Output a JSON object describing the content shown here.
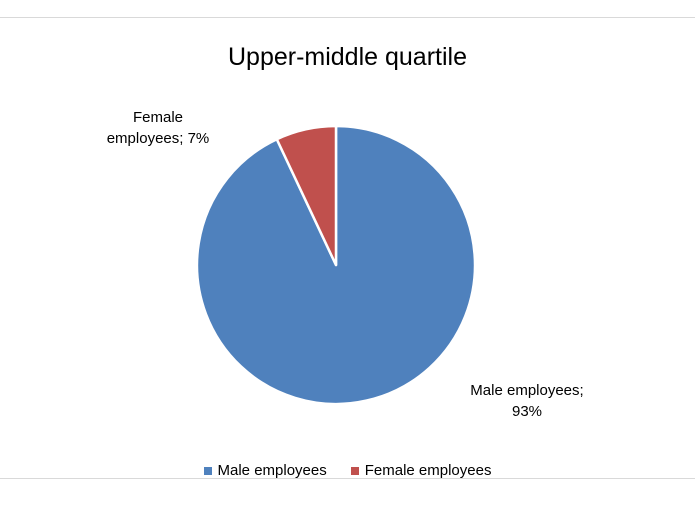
{
  "chart_data": {
    "type": "pie",
    "title": "Upper-middle quartile",
    "categories": [
      "Male employees",
      "Female employees"
    ],
    "values": [
      93,
      7
    ],
    "colors": [
      "#4f81bd",
      "#c0504d"
    ],
    "data_labels": [
      [
        "Male employees;",
        "93%"
      ],
      [
        "Female",
        "employees; 7%"
      ]
    ],
    "legend": {
      "position": "bottom",
      "entries": [
        "Male employees",
        "Female employees"
      ]
    }
  }
}
